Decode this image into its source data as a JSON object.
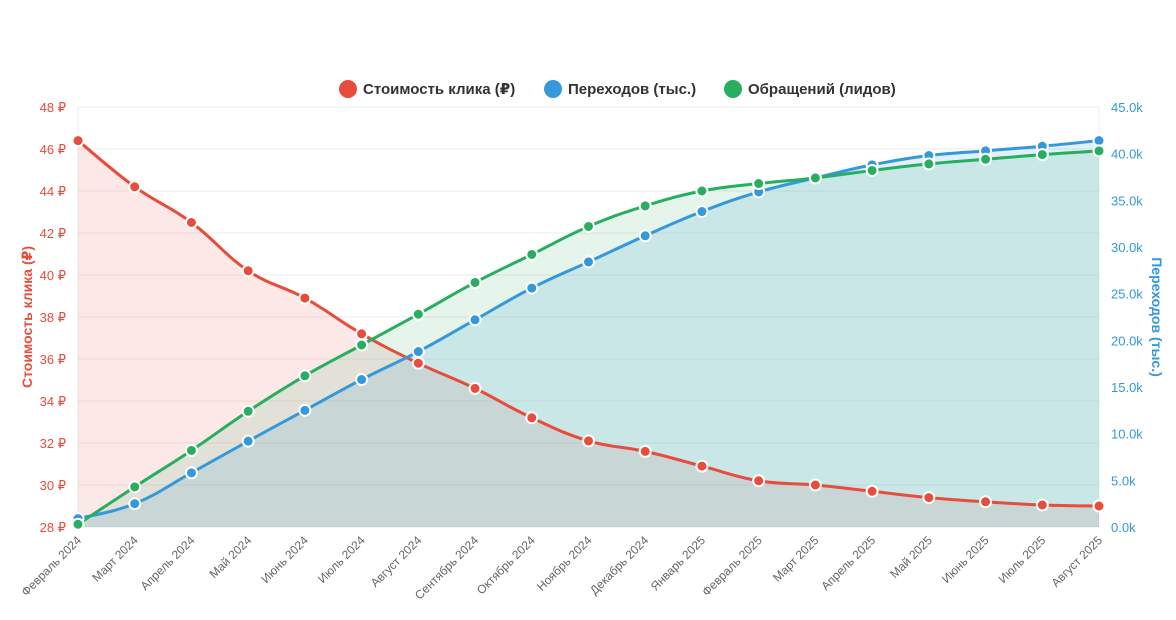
{
  "chart_data": {
    "type": "line",
    "categories": [
      "Февраль 2024",
      "Март 2024",
      "Апрель 2024",
      "Май 2024",
      "Июнь 2024",
      "Июль 2024",
      "Август 2024",
      "Сентябрь 2024",
      "Октябрь 2024",
      "Ноябрь 2024",
      "Декабрь 2024",
      "Январь 2025",
      "Февраль 2025",
      "Март 2025",
      "Апрель 2025",
      "Май 2025",
      "Июнь 2025",
      "Июль 2025",
      "Август 2025"
    ],
    "series": [
      {
        "name": "Стоимость клика (₽)",
        "axis": "left",
        "color": "#e74c3c",
        "fill": "rgba(231,76,60,0.12)",
        "values": [
          46.4,
          44.2,
          42.5,
          40.2,
          38.9,
          37.2,
          35.8,
          34.6,
          33.2,
          32.1,
          31.6,
          30.9,
          30.2,
          30.0,
          29.7,
          29.4,
          29.2,
          29.05,
          29.0
        ]
      },
      {
        "name": "Переходов (тыс.)",
        "axis": "right",
        "color": "#3498db",
        "fill": "rgba(52,152,219,0.15)",
        "values": [
          0.9,
          2.5,
          5.8,
          9.2,
          12.5,
          15.8,
          18.8,
          22.2,
          25.6,
          28.4,
          31.2,
          33.8,
          35.9,
          37.4,
          38.8,
          39.8,
          40.3,
          40.8,
          41.4
        ]
      },
      {
        "name": "Обращений (лидов)",
        "axis": "right",
        "color": "#27ae60",
        "fill": "rgba(39,174,96,0.12)",
        "values": [
          0.3,
          4.3,
          8.2,
          12.4,
          16.2,
          19.5,
          22.8,
          26.2,
          29.2,
          32.2,
          34.4,
          36.0,
          36.8,
          37.4,
          38.2,
          38.9,
          39.4,
          39.9,
          40.3
        ]
      }
    ],
    "y_left": {
      "label": "Стоимость клика (₽)",
      "min": 28,
      "max": 48,
      "ticks": [
        "28 ₽",
        "30 ₽",
        "32 ₽",
        "34 ₽",
        "36 ₽",
        "38 ₽",
        "40 ₽",
        "42 ₽",
        "44 ₽",
        "46 ₽",
        "48 ₽"
      ],
      "color": "#e74c3c"
    },
    "y_right": {
      "label": "Переходов (тыс.)",
      "min": 0,
      "max": 45,
      "ticks": [
        "0.0k",
        "5.0k",
        "10.0k",
        "15.0k",
        "20.0k",
        "25.0k",
        "30.0k",
        "35.0k",
        "40.0k",
        "45.0k"
      ],
      "color": "#3498db"
    },
    "legend_position": "top",
    "grid": true
  }
}
